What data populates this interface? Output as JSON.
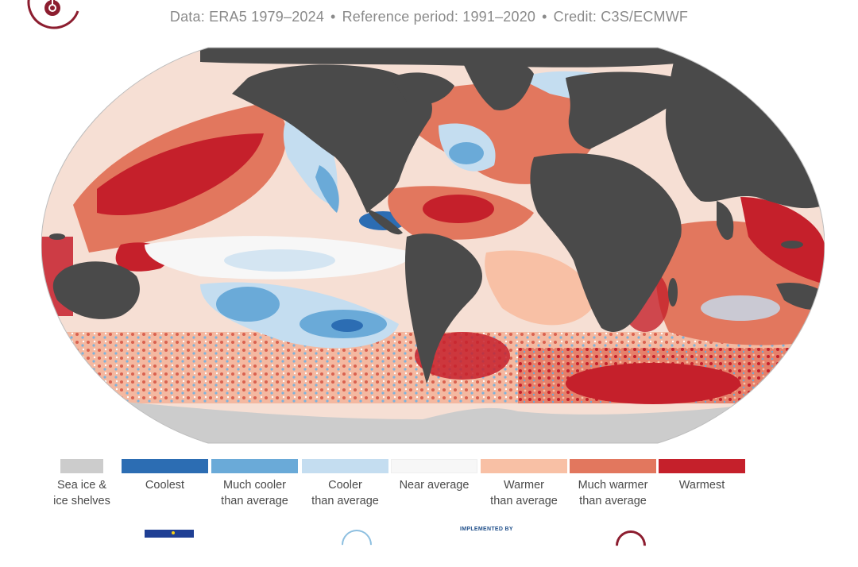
{
  "header": {
    "data_source": "Data: ERA5 1979–2024",
    "reference_period": "Reference period: 1991–2020",
    "credit": "Credit: C3S/ECMWF",
    "separator": "•"
  },
  "map": {
    "projection": "Robinson",
    "land_color": "#4a4a4a",
    "sea_ice_color": "#cccccc",
    "regions": [
      {
        "name": "north-pacific-warm-band",
        "category": "warmest"
      },
      {
        "name": "northeast-pacific-cool-patch",
        "category": "much-cooler"
      },
      {
        "name": "south-pacific-cool-patch",
        "category": "coolest"
      },
      {
        "name": "caribbean-tropical-atlantic",
        "category": "warmest"
      },
      {
        "name": "north-atlantic-subpolar-cool",
        "category": "much-cooler"
      },
      {
        "name": "indian-ocean-east",
        "category": "warmest"
      },
      {
        "name": "southern-ocean-indian-sector",
        "category": "warmest"
      },
      {
        "name": "equatorial-pacific",
        "category": "near-average"
      }
    ]
  },
  "legend": {
    "items": [
      {
        "key": "sea-ice",
        "label_line1": "Sea ice &",
        "label_line2": "ice shelves",
        "color": "#cccccc"
      },
      {
        "key": "coolest",
        "label_line1": "Coolest",
        "label_line2": "",
        "color": "#2c6db3"
      },
      {
        "key": "much-cooler",
        "label_line1": "Much cooler",
        "label_line2": "than average",
        "color": "#6aaad8"
      },
      {
        "key": "cooler",
        "label_line1": "Cooler",
        "label_line2": "than average",
        "color": "#c4ddf0"
      },
      {
        "key": "near-average",
        "label_line1": "Near average",
        "label_line2": "",
        "color": "#f7f7f7"
      },
      {
        "key": "warmer",
        "label_line1": "Warmer",
        "label_line2": "than average",
        "color": "#f8c0a5"
      },
      {
        "key": "much-warmer",
        "label_line1": "Much warmer",
        "label_line2": "than average",
        "color": "#e2775e"
      },
      {
        "key": "warmest",
        "label_line1": "Warmest",
        "label_line2": "",
        "color": "#c5202b"
      }
    ]
  },
  "logos": {
    "implemented_by": "IMPLEMENTED BY",
    "brand_color": "#8c1d2f"
  }
}
